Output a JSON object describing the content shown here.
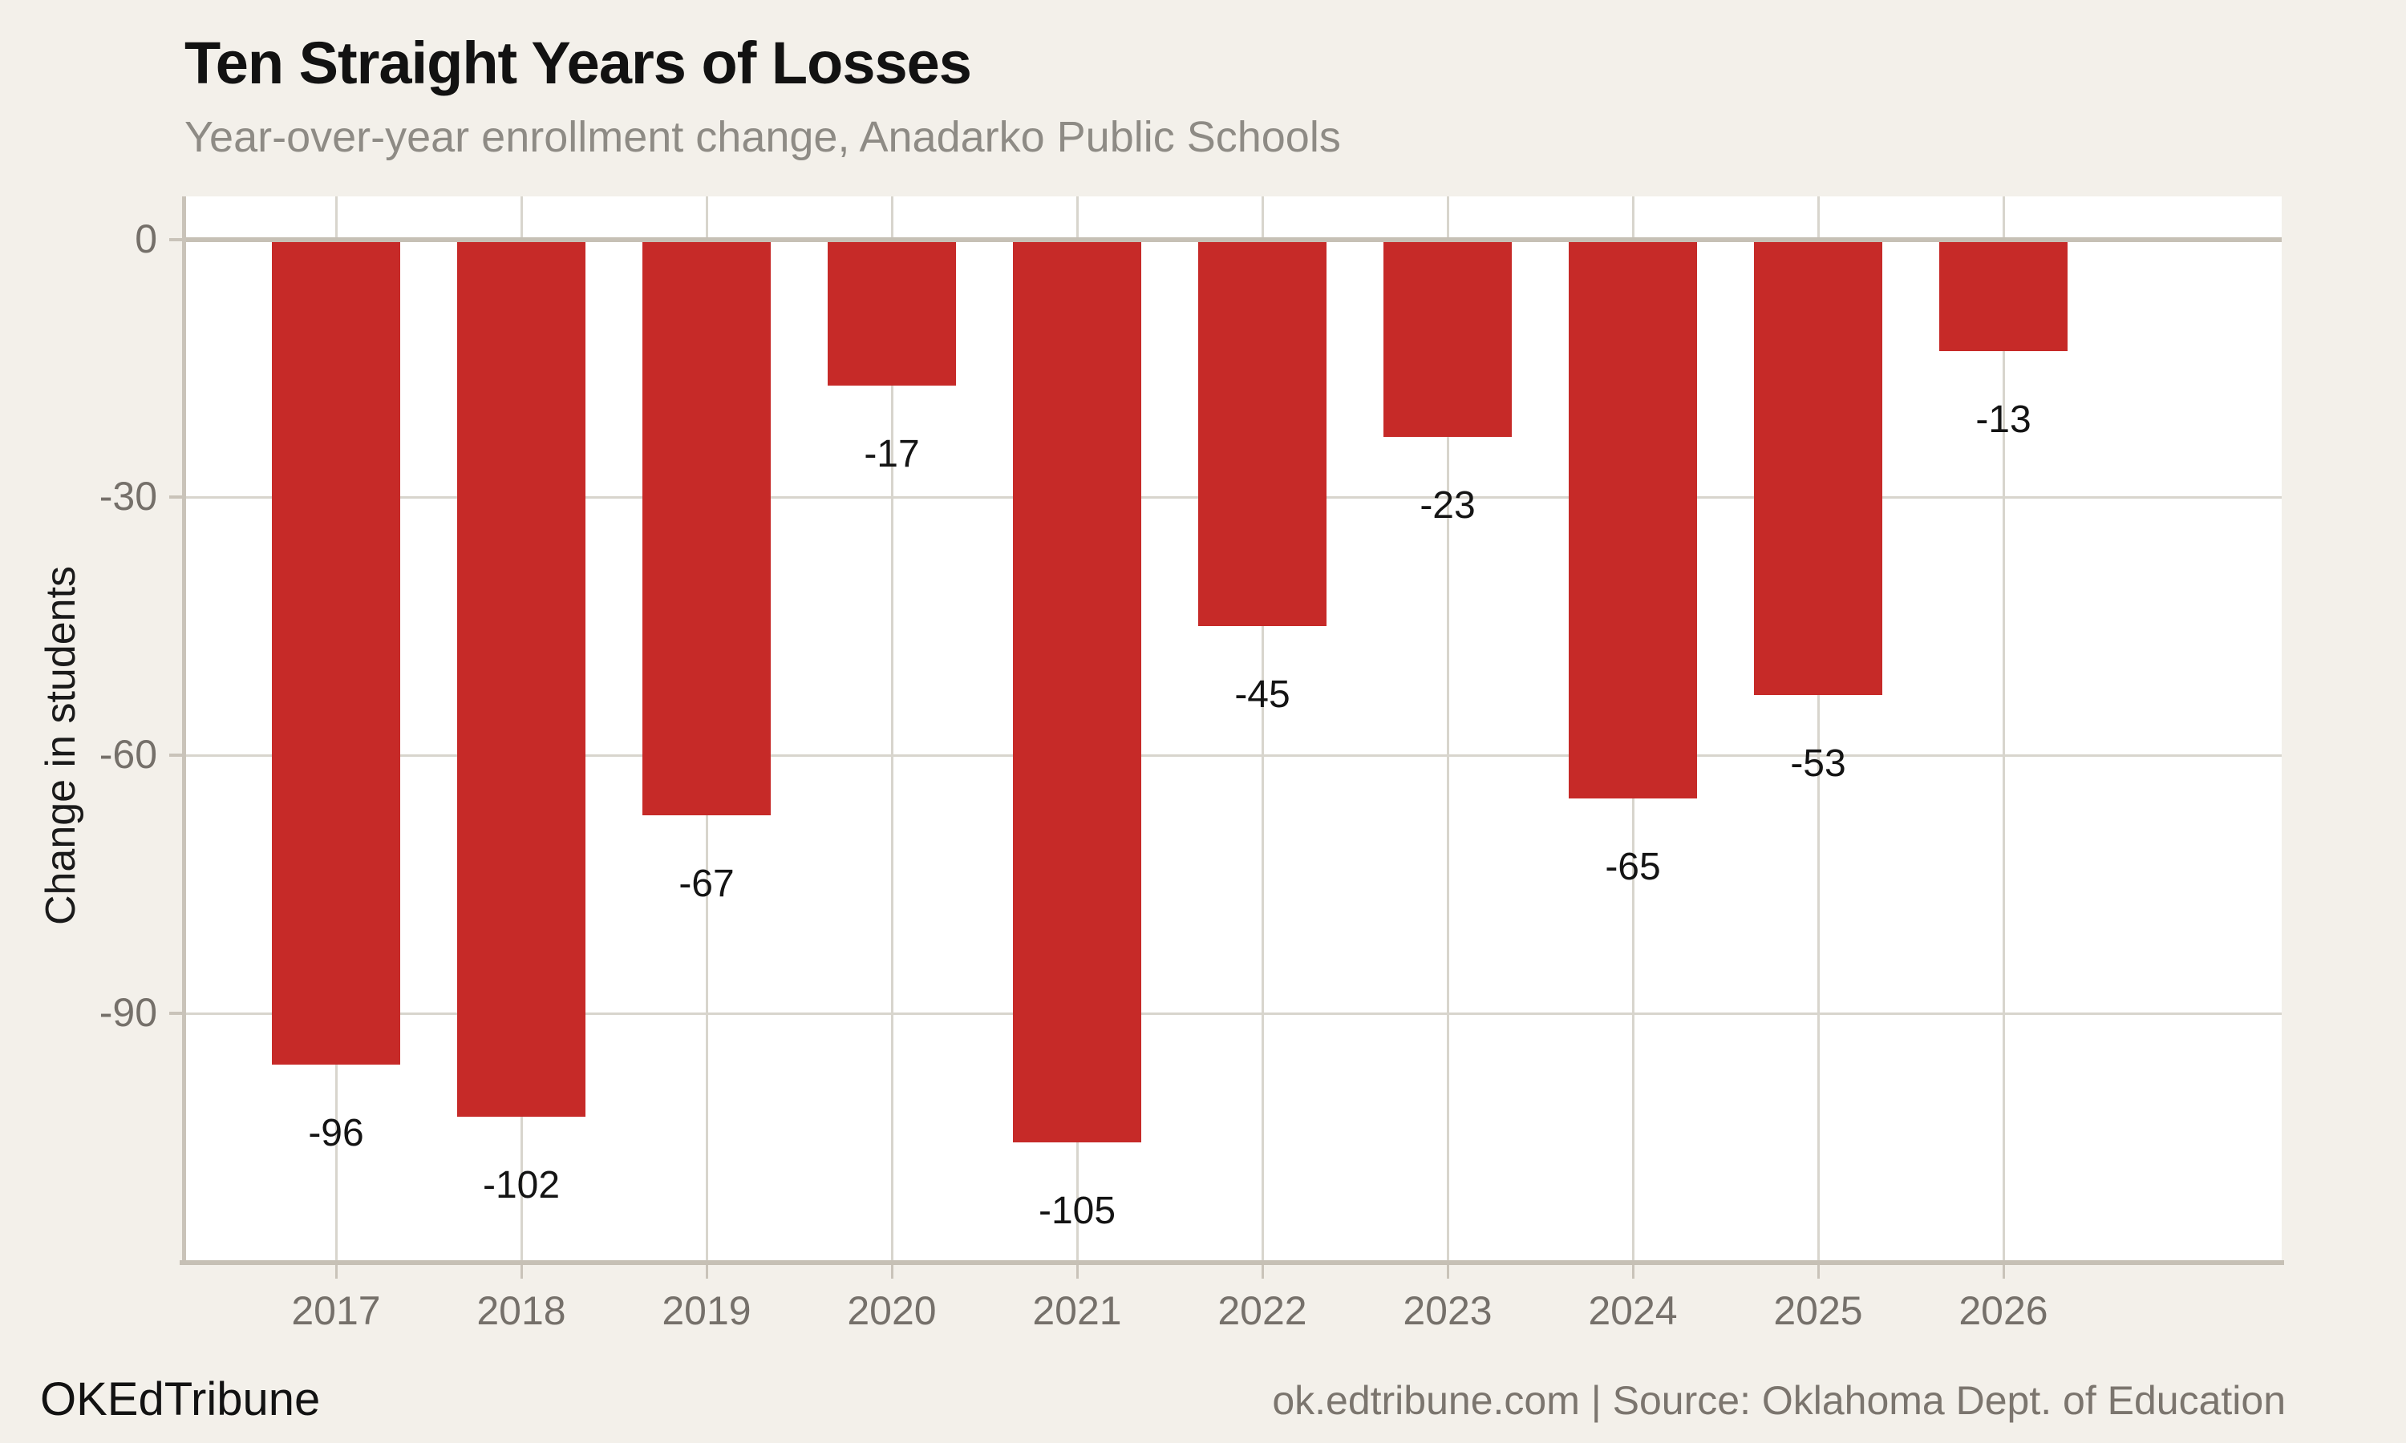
{
  "header": {
    "title": "Ten Straight Years of Losses",
    "subtitle": "Year-over-year enrollment change, Anadarko Public Schools"
  },
  "footer": {
    "brand": "OKEdTribune",
    "source": "ok.edtribune.com | Source: Oklahoma Dept. of Education"
  },
  "chart_data": {
    "type": "bar",
    "title": "Ten Straight Years of Losses",
    "subtitle": "Year-over-year enrollment change, Anadarko Public Schools",
    "categories": [
      "2017",
      "2018",
      "2019",
      "2020",
      "2021",
      "2022",
      "2023",
      "2024",
      "2025",
      "2026"
    ],
    "values": [
      -96,
      -102,
      -67,
      -17,
      -105,
      -45,
      -23,
      -65,
      -53,
      -13
    ],
    "data_labels": [
      "-96",
      "-102",
      "-67",
      "-17",
      "-105",
      "-45",
      "-23",
      "-65",
      "-53",
      "-13"
    ],
    "xlabel": "",
    "ylabel": "Change in students",
    "yticks": [
      0,
      -30,
      -60,
      -90
    ],
    "ytick_labels": [
      "0",
      "-30",
      "-60",
      "-90"
    ],
    "ylim": [
      5,
      -119
    ],
    "grid": true,
    "legend": "none",
    "bar_color": "#c62a28",
    "background_color": "#f3f0ea",
    "plot_background_color": "#ffffff",
    "gridline_color": "#d8d5cd",
    "axis_line_color": "#c6c0b5",
    "axis_text_color": "#75706a",
    "value_label_color": "#141414",
    "title_color": "#121212",
    "subtitle_color": "#8e8b85"
  }
}
